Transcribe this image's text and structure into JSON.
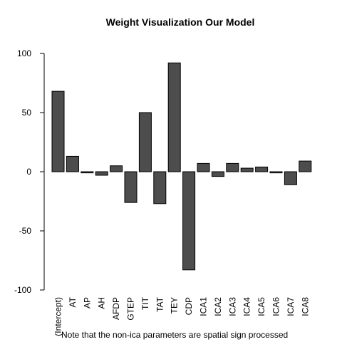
{
  "chart_data": {
    "type": "bar",
    "title": "Weight Visualization Our Model",
    "xlabel": "",
    "ylabel": "",
    "ylim": [
      -100,
      100
    ],
    "yticks": [
      -100,
      -50,
      0,
      50,
      100
    ],
    "yticklabels": [
      "-100",
      "-50",
      "0",
      "50",
      "100"
    ],
    "categories": [
      "(Intercept)",
      "AT",
      "AP",
      "AH",
      "AFDP",
      "GTEP",
      "TIT",
      "TAT",
      "TEY",
      "CDP",
      "ICA1",
      "ICA2",
      "ICA3",
      "ICA4",
      "ICA5",
      "ICA6",
      "ICA7",
      "ICA8"
    ],
    "values": [
      68,
      13,
      -1,
      -3,
      5,
      -26,
      50,
      -27,
      92,
      -83,
      7,
      -4,
      7,
      3,
      4,
      -1,
      -11,
      9
    ],
    "bar_color": "#4d4d4d",
    "grid": false,
    "note": "Note that the non-ica parameters are spatial sign processed"
  }
}
